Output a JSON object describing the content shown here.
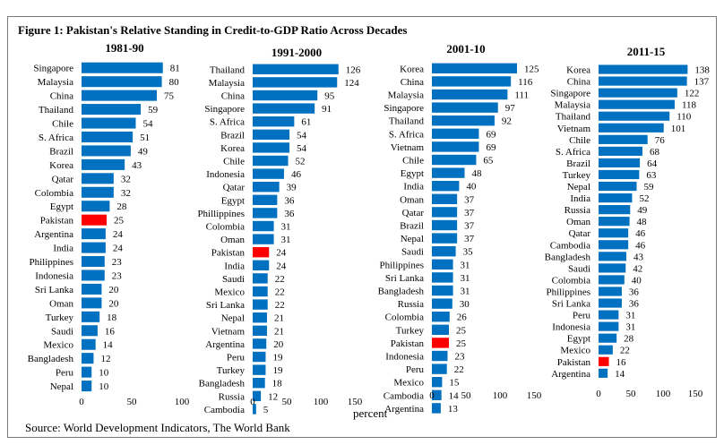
{
  "figure": {
    "title": "Figure 1: Pakistan's Relative Standing in Credit-to-GDP Ratio Across Decades",
    "source": "Source: World Development Indicators, The World Bank",
    "xlabel": "percent"
  },
  "colors": {
    "bar": "#0070c0",
    "highlight": "#ff0000"
  },
  "chart_data": [
    {
      "type": "bar",
      "orientation": "horizontal",
      "title": "1981-90",
      "categories": [
        "Singapore",
        "Malaysia",
        "China",
        "Thailand",
        "Chile",
        "S. Africa",
        "Brazil",
        "Korea",
        "Qatar",
        "Colombia",
        "Egypt",
        "Pakistan",
        "Argentina",
        "India",
        "Philippines",
        "Indonesia",
        "Sri Lanka",
        "Oman",
        "Turkey",
        "Saudi",
        "Mexico",
        "Bangladesh",
        "Peru",
        "Nepal"
      ],
      "values": [
        81,
        80,
        75,
        59,
        54,
        51,
        49,
        43,
        32,
        32,
        28,
        25,
        24,
        24,
        23,
        23,
        20,
        20,
        18,
        16,
        14,
        12,
        10,
        10
      ],
      "xlim": [
        0,
        100
      ],
      "xticks": [
        0,
        50,
        100
      ],
      "highlight": "Pakistan"
    },
    {
      "type": "bar",
      "orientation": "horizontal",
      "title": "1991-2000",
      "categories": [
        "Thailand",
        "Malaysia",
        "China",
        "Singapore",
        "S. Africa",
        "Brazil",
        "Korea",
        "Chile",
        "Indonesia",
        "Qatar",
        "Egypt",
        "Phillippines",
        "Colombia",
        "Oman",
        "Pakistan",
        "India",
        "Saudi",
        "Mexico",
        "Sri Lanka",
        "Nepal",
        "Vietnam",
        "Argentina",
        "Peru",
        "Turkey",
        "Bangladesh",
        "Russia",
        "Cambodia"
      ],
      "values": [
        126,
        124,
        95,
        91,
        61,
        54,
        54,
        52,
        46,
        39,
        36,
        36,
        31,
        31,
        24,
        24,
        22,
        22,
        22,
        21,
        21,
        20,
        19,
        19,
        18,
        12,
        5
      ],
      "xlim": [
        0,
        150
      ],
      "xticks": [
        0,
        50,
        100,
        150
      ],
      "highlight": "Pakistan"
    },
    {
      "type": "bar",
      "orientation": "horizontal",
      "title": "2001-10",
      "categories": [
        "Korea",
        "China",
        "Malaysia",
        "Singapore",
        "Thailand",
        "S. Africa",
        "Vietnam",
        "Chile",
        "Egypt",
        "India",
        "Oman",
        "Qatar",
        "Brazil",
        "Nepal",
        "Saudi",
        "Philippines",
        "Sri Lanka",
        "Bangladesh",
        "Russia",
        "Colombia",
        "Turkey",
        "Pakistan",
        "Indonesia",
        "Peru",
        "Mexico",
        "Cambodia",
        "Argentina"
      ],
      "values": [
        125,
        116,
        111,
        97,
        92,
        69,
        69,
        65,
        48,
        40,
        37,
        37,
        37,
        37,
        35,
        31,
        31,
        31,
        30,
        26,
        25,
        25,
        23,
        22,
        15,
        14,
        13
      ],
      "xlim": [
        0,
        150
      ],
      "xticks": [
        0,
        50,
        100,
        150
      ],
      "highlight": "Pakistan"
    },
    {
      "type": "bar",
      "orientation": "horizontal",
      "title": "2011-15",
      "categories": [
        "Korea",
        "China",
        "Singapore",
        "Malaysia",
        "Thailand",
        "Vietnam",
        "Chile",
        "S. Africa",
        "Brazil",
        "Turkey",
        "Nepal",
        "India",
        "Russia",
        "Oman",
        "Qatar",
        "Cambodia",
        "Bangladesh",
        "Saudi",
        "Colombia",
        "Philippines",
        "Sri Lanka",
        "Peru",
        "Indonesia",
        "Egypt",
        "Mexico",
        "Pakistan",
        "Argentina"
      ],
      "values": [
        138,
        137,
        122,
        118,
        110,
        101,
        76,
        68,
        64,
        63,
        59,
        52,
        49,
        48,
        46,
        46,
        43,
        42,
        40,
        36,
        36,
        31,
        31,
        28,
        22,
        16,
        14
      ],
      "xlim": [
        0,
        150
      ],
      "xticks": [
        0,
        50,
        100,
        150
      ],
      "highlight": "Pakistan"
    }
  ]
}
